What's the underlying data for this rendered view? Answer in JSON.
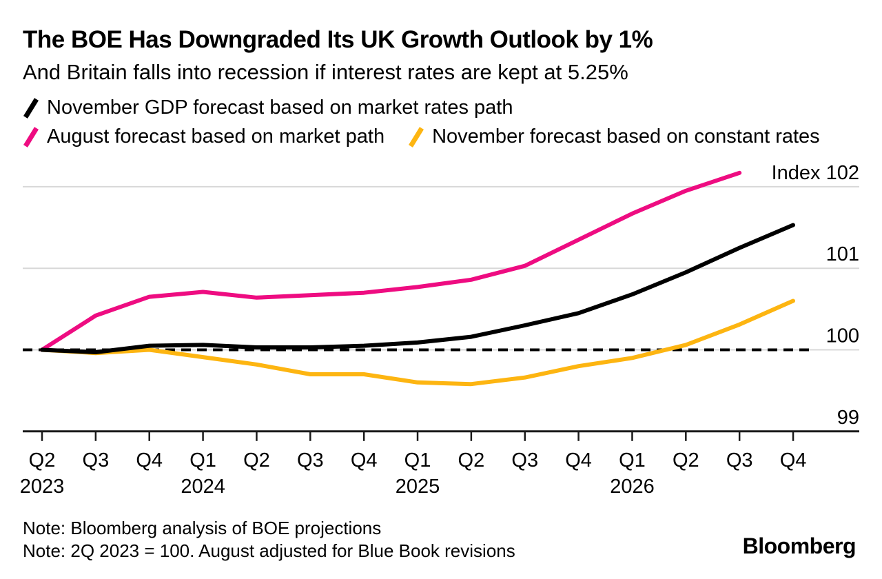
{
  "header": {
    "title": "The BOE Has Downgraded Its UK Growth Outlook by 1%",
    "subtitle": "And Britain falls into recession if interest rates are kept at 5.25%"
  },
  "footer": {
    "note_1": "Note: Bloomberg analysis of BOE projections",
    "note_2": "Note: 2Q 2023 = 100. August adjusted for Blue Book revisions",
    "brand": "Bloomberg"
  },
  "chart_data": {
    "type": "line",
    "title": "The BOE Has Downgraded Its UK Growth Outlook by 1%",
    "subtitle": "And Britain falls into recession if interest rates are kept at 5.25%",
    "x_categories": [
      "Q2",
      "Q3",
      "Q4",
      "Q1",
      "Q2",
      "Q3",
      "Q4",
      "Q1",
      "Q2",
      "Q3",
      "Q4",
      "Q1",
      "Q2",
      "Q3",
      "Q4"
    ],
    "year_labels": [
      {
        "index": 0,
        "label": "2023"
      },
      {
        "index": 3,
        "label": "2024"
      },
      {
        "index": 7,
        "label": "2025"
      },
      {
        "index": 11,
        "label": "2026"
      }
    ],
    "y_axis": {
      "ticks": [
        99,
        100,
        101,
        102
      ],
      "top_label": "Index 102",
      "ylim": [
        98.9,
        102.3
      ]
    },
    "baseline": {
      "value": 100,
      "style": "dashed",
      "color": "#000000"
    },
    "grid": true,
    "legend_position": "top-left",
    "colors": {
      "grid": "#d8d8d8",
      "axis": "#1a1a1a",
      "text": "#000000"
    },
    "series": [
      {
        "name": "November GDP forecast based on market rates path",
        "color": "#000000",
        "values": [
          100.0,
          99.97,
          100.05,
          100.06,
          100.03,
          100.03,
          100.05,
          100.09,
          100.16,
          100.3,
          100.45,
          100.68,
          100.95,
          101.25,
          101.53
        ]
      },
      {
        "name": "August forecast based on market path",
        "color": "#EE0C81",
        "values": [
          100.0,
          100.42,
          100.65,
          100.71,
          100.64,
          100.67,
          100.7,
          100.77,
          100.86,
          101.03,
          101.35,
          101.67,
          101.95,
          102.17,
          null
        ]
      },
      {
        "name": "November forecast based on constant rates",
        "color": "#FDB511",
        "values": [
          100.0,
          99.96,
          100.0,
          99.91,
          99.82,
          99.7,
          99.7,
          99.6,
          99.58,
          99.66,
          99.8,
          99.9,
          100.06,
          100.31,
          100.6
        ]
      }
    ]
  }
}
